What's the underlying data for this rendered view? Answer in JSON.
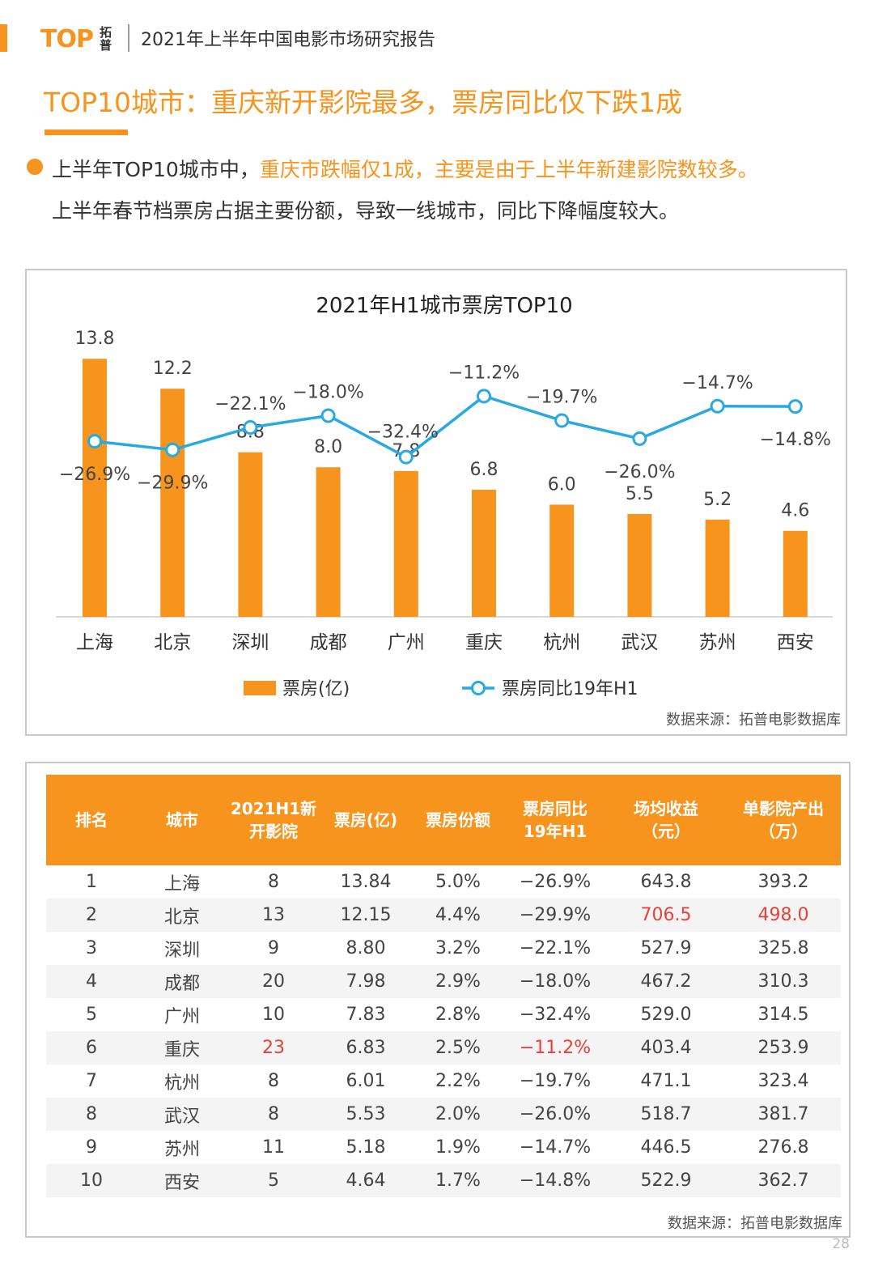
{
  "header": {
    "logo_text": "TOP",
    "logo_cn_1": "拓",
    "logo_cn_2": "普",
    "title": "2021年上半年中国电影市场研究报告"
  },
  "page_title": "TOP10城市：重庆新开影院最多，票房同比仅下跌1成",
  "summary": {
    "line1_normal": "上半年TOP10城市中，",
    "line1_highlight": "重庆市跌幅仅1成，主要是由于上半年新建影院数较多。",
    "line2": "上半年春节档票房占据主要份额，导致一线城市，同比下降幅度较大。"
  },
  "chart_data": {
    "type": "bar",
    "title": "2021年H1城市票房TOP10",
    "categories": [
      "上海",
      "北京",
      "深圳",
      "成都",
      "广州",
      "重庆",
      "杭州",
      "武汉",
      "苏州",
      "西安"
    ],
    "series": [
      {
        "name": "票房(亿)",
        "type": "bar",
        "values": [
          13.8,
          12.2,
          8.8,
          8.0,
          7.8,
          6.8,
          6.0,
          5.5,
          5.2,
          4.6
        ],
        "labels": [
          "13.8",
          "12.2",
          "8.8",
          "8.0",
          "7.8",
          "6.8",
          "6.0",
          "5.5",
          "5.2",
          "4.6"
        ]
      },
      {
        "name": "票房同比19年H1",
        "type": "line",
        "values": [
          -26.9,
          -29.9,
          -22.1,
          -18.0,
          -32.4,
          -11.2,
          -19.7,
          -26.0,
          -14.7,
          -14.8
        ],
        "labels": [
          "−26.9%",
          "−29.9%",
          "−22.1%",
          "−18.0%",
          "−32.4%",
          "−11.2%",
          "−19.7%",
          "−26.0%",
          "−14.7%",
          "−14.8%"
        ]
      }
    ],
    "colors": {
      "bar": "#f7941d",
      "line": "#29a9e0"
    },
    "legend": "bottom",
    "grid": false,
    "source": "数据来源：拓普电影数据库"
  },
  "table": {
    "headers": [
      [
        "排名"
      ],
      [
        "城市"
      ],
      [
        "2021H1新",
        "开影院"
      ],
      [
        "票房(亿)"
      ],
      [
        "票房份额"
      ],
      [
        "票房同比",
        "19年H1"
      ],
      [
        "场均收益",
        "（元）"
      ],
      [
        "单影院产出",
        "（万）"
      ]
    ],
    "rows": [
      [
        "1",
        "上海",
        "8",
        "13.84",
        "5.0%",
        "−26.9%",
        "643.8",
        "393.2"
      ],
      [
        "2",
        "北京",
        "13",
        "12.15",
        "4.4%",
        "−29.9%",
        "706.5",
        "498.0"
      ],
      [
        "3",
        "深圳",
        "9",
        "8.80",
        "3.2%",
        "−22.1%",
        "527.9",
        "325.8"
      ],
      [
        "4",
        "成都",
        "20",
        "7.98",
        "2.9%",
        "−18.0%",
        "467.2",
        "310.3"
      ],
      [
        "5",
        "广州",
        "10",
        "7.83",
        "2.8%",
        "−32.4%",
        "529.0",
        "314.5"
      ],
      [
        "6",
        "重庆",
        "23",
        "6.83",
        "2.5%",
        "−11.2%",
        "403.4",
        "253.9"
      ],
      [
        "7",
        "杭州",
        "8",
        "6.01",
        "2.2%",
        "−19.7%",
        "471.1",
        "323.4"
      ],
      [
        "8",
        "武汉",
        "8",
        "5.53",
        "2.0%",
        "−26.0%",
        "518.7",
        "381.7"
      ],
      [
        "9",
        "苏州",
        "11",
        "5.18",
        "1.9%",
        "−14.7%",
        "446.5",
        "276.8"
      ],
      [
        "10",
        "西安",
        "5",
        "4.64",
        "1.7%",
        "−14.8%",
        "522.9",
        "362.7"
      ]
    ],
    "highlight_color": "#e8413c",
    "highlights": [
      [
        1,
        6
      ],
      [
        1,
        7
      ],
      [
        5,
        2
      ],
      [
        5,
        5
      ]
    ],
    "source": "数据来源：拓普电影数据库"
  },
  "page_number": "28"
}
